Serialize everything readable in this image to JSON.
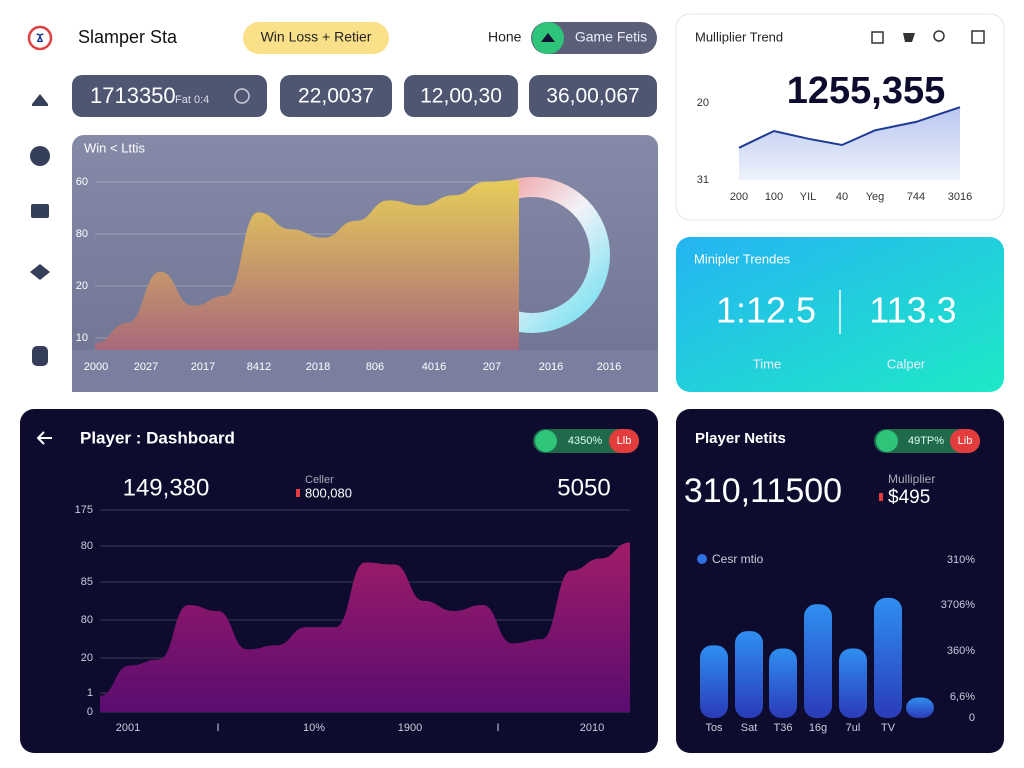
{
  "header": {
    "title": "Slamper Sta",
    "pill": "Win Loss + Retier",
    "nav_home": "Hone",
    "nav_tab": "Game Fetis"
  },
  "stats": [
    {
      "value": "1713350",
      "label": "Fat 0:4"
    },
    {
      "value": "22,0037"
    },
    {
      "value": "12,00,30"
    },
    {
      "value": "36,00,067"
    }
  ],
  "win_loss": {
    "type": "area",
    "title": "Win < Lttis",
    "y_axis_labels": [
      "60",
      "80",
      "20",
      "10"
    ],
    "x_axis_labels": [
      "2000",
      "2027",
      "2017",
      "8412",
      "2018",
      "806",
      "4016",
      "207",
      "2016",
      "2016"
    ],
    "values": [
      4,
      16,
      46,
      26,
      32,
      81,
      71,
      66,
      76,
      88,
      85,
      91,
      99,
      100
    ],
    "ylim": [
      0,
      100
    ],
    "color": "#dcc35c"
  },
  "multiplier_trend": {
    "type": "line",
    "title": "Mulliplier Trend",
    "headline": "1255,355",
    "categories": [
      "200",
      "100",
      "YIL",
      "40",
      "Yeg",
      "744",
      "3016"
    ],
    "values": [
      26.4,
      24,
      25.1,
      26,
      23.9,
      22.7,
      20.6
    ],
    "ylim": [
      31,
      20
    ],
    "yticks": [
      20,
      31
    ],
    "color": "#1f3a93"
  },
  "multiplier_trends_card": {
    "title": "Minipler Trendes",
    "left_value": "1:12.5",
    "left_label": "Time",
    "right_value": "113.3",
    "right_label": "Calper"
  },
  "player_dashboard": {
    "title": "Player : Dashboard",
    "badge": "4350%",
    "badge_alt": "Llb",
    "stat_main": "149,380",
    "stat_mid_label": "Celler",
    "stat_mid_value": "800,080",
    "stat_right": "5050",
    "chart": {
      "type": "area",
      "y_axis_labels": [
        "175",
        "80",
        "85",
        "80",
        "20",
        "1",
        "0"
      ],
      "x_axis_labels": [
        "2001",
        "I",
        "10%",
        "1900",
        "I",
        "2010"
      ],
      "values": [
        8,
        23,
        26,
        53,
        50,
        31,
        33,
        42,
        42,
        74,
        73,
        55,
        50,
        53,
        34,
        36,
        70,
        76,
        84
      ],
      "ylim": [
        0,
        100
      ],
      "color": "#8e1a6b"
    }
  },
  "player_netits": {
    "title": "Player Netits",
    "badge": "49TP%",
    "badge_alt": "Lib",
    "stat_main": "310,11500",
    "stat_label": "Mulliplier",
    "stat_value": "$495",
    "chart": {
      "type": "bar",
      "series_name": "Cesr mtio",
      "y_axis_labels": [
        "310%",
        "3706%",
        "360%",
        "6,6%",
        "0"
      ],
      "categories": [
        "Tos",
        "Sat",
        "T36",
        "16g",
        "7ul",
        "TV",
        null
      ],
      "values": [
        46,
        55,
        44,
        72,
        44,
        76,
        13
      ],
      "ylim": [
        0,
        100
      ],
      "color": "#2f6fe0"
    }
  }
}
